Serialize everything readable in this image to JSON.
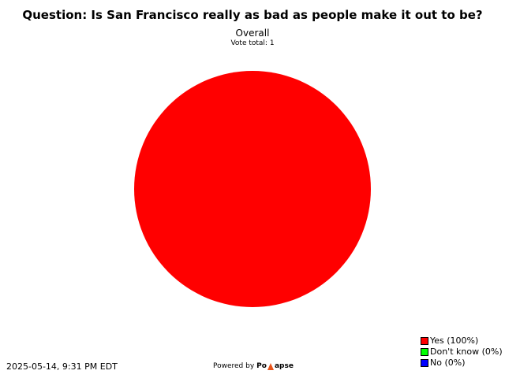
{
  "chart_data": {
    "type": "pie",
    "title": "Question: Is San Francisco really as bad as people make it out to be?",
    "subtitle": "Overall",
    "vote_total_label": "Vote total: 1",
    "slices": [
      {
        "label": "Yes (100%)",
        "value": 100,
        "color": "#ff0000"
      },
      {
        "label": "Don't know (0%)",
        "value": 0,
        "color": "#00ff00"
      },
      {
        "label": "No (0%)",
        "value": 0,
        "color": "#0000ff"
      }
    ],
    "legend_position": "bottom-right"
  },
  "footer": {
    "timestamp": "2025-05-14, 9:31 PM EDT",
    "powered_by": "Powered by",
    "brand_left": "Po",
    "brand_right": "apse"
  }
}
